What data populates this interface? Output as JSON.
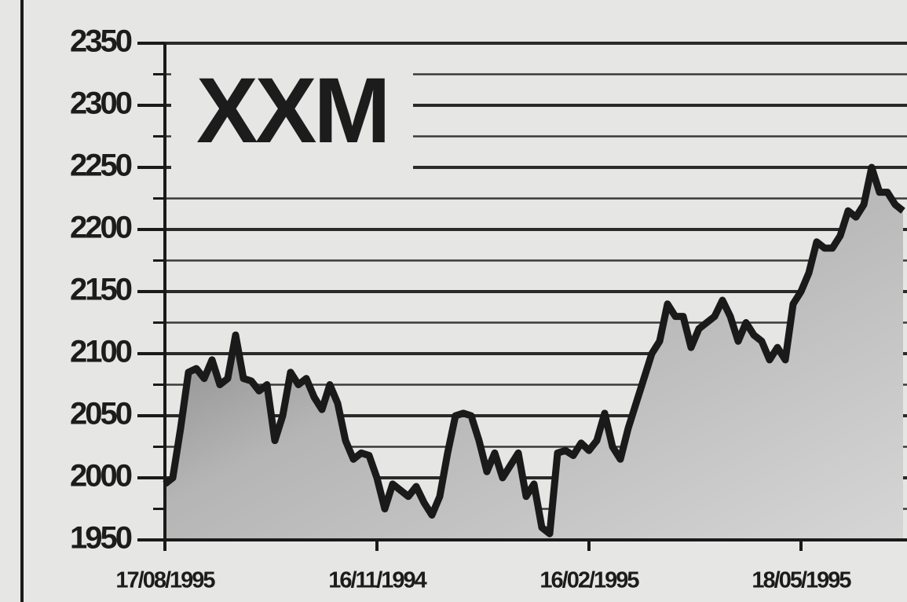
{
  "chart_data": {
    "type": "area",
    "title": "XXM",
    "categories": [
      "17/08/1995",
      null,
      null,
      null,
      null,
      null,
      null,
      null,
      null,
      null,
      null,
      null,
      null,
      null,
      null,
      null,
      null,
      null,
      null,
      null,
      null,
      null,
      null,
      null,
      null,
      null,
      null,
      "16/11/1994",
      null,
      null,
      null,
      null,
      null,
      null,
      null,
      null,
      null,
      null,
      null,
      null,
      null,
      null,
      null,
      null,
      null,
      null,
      null,
      null,
      null,
      null,
      null,
      null,
      null,
      null,
      "16/02/1995",
      null,
      null,
      null,
      null,
      null,
      null,
      null,
      null,
      null,
      null,
      null,
      null,
      null,
      null,
      null,
      null,
      null,
      null,
      null,
      null,
      null,
      null,
      null,
      null,
      null,
      null,
      "18/05/1995",
      null,
      null,
      null,
      null,
      null,
      null,
      null,
      null,
      null,
      null,
      null,
      null,
      null
    ],
    "values": [
      1995,
      2000,
      2040,
      2085,
      2088,
      2080,
      2095,
      2075,
      2080,
      2115,
      2080,
      2078,
      2070,
      2075,
      2030,
      2050,
      2085,
      2075,
      2080,
      2065,
      2055,
      2075,
      2060,
      2030,
      2015,
      2020,
      2018,
      2000,
      1975,
      1995,
      1990,
      1985,
      1993,
      1980,
      1970,
      1985,
      2020,
      2050,
      2052,
      2050,
      2030,
      2005,
      2020,
      2000,
      2010,
      2020,
      1985,
      1995,
      1960,
      1955,
      2020,
      2022,
      2018,
      2028,
      2022,
      2030,
      2052,
      2025,
      2015,
      2040,
      2060,
      2080,
      2100,
      2110,
      2140,
      2130,
      2130,
      2105,
      2120,
      2125,
      2130,
      2143,
      2130,
      2110,
      2125,
      2115,
      2110,
      2095,
      2105,
      2095,
      2140,
      2150,
      2165,
      2190,
      2185,
      2185,
      2195,
      2215,
      2210,
      2220,
      2250,
      2230,
      2230,
      2220,
      2215
    ],
    "color": "#1a1a1a",
    "ylim": [
      1950,
      2350
    ],
    "yticks": [
      1950,
      2000,
      2050,
      2100,
      2150,
      2200,
      2250,
      2300,
      2350
    ],
    "minor_yticks": [
      1975,
      2025,
      2075,
      2125,
      2175,
      2225,
      2275,
      2325
    ],
    "grid": true
  }
}
